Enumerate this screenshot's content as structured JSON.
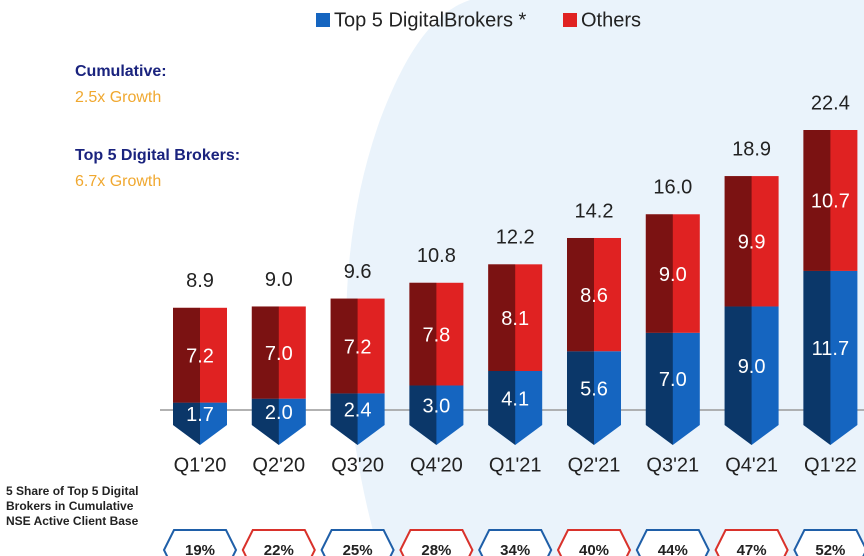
{
  "chart_data": {
    "type": "bar",
    "stacked": true,
    "categories": [
      "Q1'20",
      "Q2'20",
      "Q3'20",
      "Q4'20",
      "Q1'21",
      "Q2'21",
      "Q3'21",
      "Q4'21",
      "Q1'22"
    ],
    "series": [
      {
        "name": "Top 5 DigitalBrokers *",
        "color": "#1565c0",
        "values": [
          1.7,
          2.0,
          2.4,
          3.0,
          4.1,
          5.6,
          7.0,
          9.0,
          11.7
        ],
        "value_labels": [
          "1.7",
          "2.0",
          "2.4",
          "3.0",
          "4.1",
          "5.6",
          "7.0",
          "9.0",
          "11.7"
        ]
      },
      {
        "name": "Others",
        "color": "#e02222",
        "values": [
          7.2,
          7.0,
          7.2,
          7.8,
          8.1,
          8.6,
          9.0,
          9.9,
          10.7
        ],
        "value_labels": [
          "7.2",
          "7.0",
          "7.2",
          "7.8",
          "8.1",
          "8.6",
          "9.0",
          "9.9",
          "10.7"
        ]
      }
    ],
    "totals": [
      8.9,
      9.0,
      9.6,
      10.8,
      12.2,
      14.2,
      16.0,
      18.9,
      22.4
    ],
    "total_labels": [
      "8.9",
      "9.0",
      "9.6",
      "10.8",
      "12.2",
      "14.2",
      "16.0",
      "18.9",
      "22.4"
    ],
    "annotations": [
      "Cumulative:",
      "2.5x Growth",
      "Top 5 Digital Brokers:",
      "6.7x Growth"
    ],
    "shares": {
      "label": "5 Share of Top 5 Digital Brokers in Cumulative NSE Active Client Base",
      "values": [
        19,
        22,
        25,
        28,
        34,
        40,
        44,
        47,
        52
      ],
      "value_labels": [
        "19%",
        "22%",
        "25%",
        "28%",
        "34%",
        "40%",
        "44%",
        "47%",
        "52%"
      ],
      "colors": [
        "#1f5fa8",
        "#d9322b",
        "#1f5fa8",
        "#d9322b",
        "#1f5fa8",
        "#d9322b",
        "#1f5fa8",
        "#d9322b",
        "#1f5fa8"
      ]
    },
    "legend": "top"
  }
}
